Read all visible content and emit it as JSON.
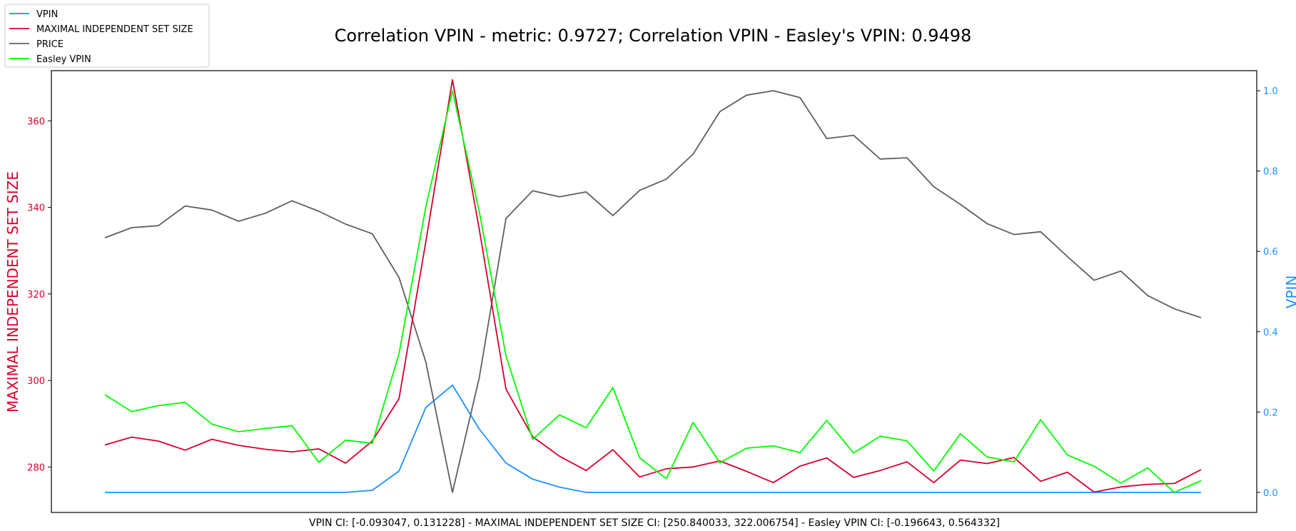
{
  "chart_data": {
    "type": "line",
    "title": "Correlation VPIN - metric: 0.9727; Correlation VPIN - Easley's VPIN: 0.9498",
    "caption": "VPIN CI: [-0.093047, 0.131228] - MAXIMAL INDEPENDENT SET SIZE CI: [250.840033, 322.006754] - Easley VPIN CI: [-0.196643, 0.564332]",
    "left_axis": {
      "label": "MAXIMAL INDEPENDENT SET SIZE",
      "color": "#d6002c",
      "range": [
        269.5,
        371.6
      ],
      "ticks": [
        280,
        300,
        320,
        340,
        360
      ],
      "tick_labels": [
        "280",
        "300",
        "320",
        "340",
        "360"
      ]
    },
    "right_axis": {
      "label": "VPIN",
      "color": "#1e90ff",
      "range": [
        -0.05,
        1.05
      ],
      "ticks": [
        0.0,
        0.2,
        0.4,
        0.6,
        0.8,
        1.0
      ],
      "tick_labels": [
        "0.0",
        "0.2",
        "0.4",
        "0.6",
        "0.8",
        "1.0"
      ]
    },
    "grid": false,
    "legend": {
      "position": "top-left",
      "entries": [
        "VPIN",
        "MAXIMAL INDEPENDENT SET SIZE",
        "PRICE",
        "Easley VPIN"
      ]
    },
    "x": [
      0,
      1,
      2,
      3,
      4,
      5,
      6,
      7,
      8,
      9,
      10,
      11,
      12,
      13,
      14,
      15,
      16,
      17,
      18,
      19,
      20,
      21,
      22,
      23,
      24,
      25,
      26,
      27,
      28,
      29,
      30,
      31,
      32,
      33,
      34,
      35,
      36,
      37,
      38,
      39,
      40,
      41
    ],
    "series": [
      {
        "name": "VPIN",
        "axis": "right",
        "color": "#1e90ff",
        "values": [
          0.0,
          0.0,
          0.0,
          0.0,
          0.0,
          0.0,
          0.0,
          0.0,
          0.0,
          0.0,
          0.005,
          0.053,
          0.211,
          0.267,
          0.158,
          0.073,
          0.033,
          0.013,
          0.0,
          0.0,
          0.0,
          0.0,
          0.0,
          0.0,
          0.0,
          0.0,
          0.0,
          0.0,
          0.0,
          0.0,
          0.0,
          0.0,
          0.0,
          0.0,
          0.0,
          0.0,
          0.0,
          0.0,
          0.0,
          0.0,
          0.0,
          0.0
        ]
      },
      {
        "name": "MAXIMAL INDEPENDENT SET SIZE",
        "axis": "left",
        "color": "#d6002c",
        "values": [
          285.1,
          286.9,
          286.0,
          283.9,
          286.4,
          285.0,
          284.1,
          283.5,
          284.2,
          280.9,
          286.0,
          295.8,
          332.0,
          369.5,
          335.0,
          298.0,
          287.0,
          282.5,
          279.2,
          284.0,
          277.7,
          279.6,
          280.0,
          281.4,
          279.0,
          276.4,
          280.2,
          282.1,
          277.6,
          279.2,
          281.2,
          276.4,
          281.6,
          280.8,
          282.2,
          276.7,
          278.8,
          274.2,
          275.4,
          276.0,
          276.2,
          279.4
        ]
      },
      {
        "name": "PRICE",
        "axis": "right",
        "color": "#5f5f5f",
        "values": [
          0.634,
          0.659,
          0.664,
          0.713,
          0.703,
          0.675,
          0.695,
          0.726,
          0.7,
          0.668,
          0.644,
          0.535,
          0.325,
          0.0,
          0.285,
          0.682,
          0.751,
          0.736,
          0.748,
          0.689,
          0.752,
          0.78,
          0.842,
          0.948,
          0.989,
          1.0,
          0.983,
          0.881,
          0.889,
          0.83,
          0.833,
          0.761,
          0.717,
          0.669,
          0.642,
          0.649,
          0.587,
          0.528,
          0.551,
          0.49,
          0.457,
          0.435
        ]
      },
      {
        "name": "Easley VPIN",
        "axis": "right",
        "color": "#00ff00",
        "values": [
          0.243,
          0.201,
          0.216,
          0.224,
          0.17,
          0.151,
          0.159,
          0.166,
          0.075,
          0.13,
          0.122,
          0.345,
          0.71,
          1.0,
          0.7,
          0.34,
          0.132,
          0.193,
          0.161,
          0.261,
          0.086,
          0.034,
          0.174,
          0.074,
          0.11,
          0.116,
          0.099,
          0.179,
          0.098,
          0.14,
          0.128,
          0.053,
          0.146,
          0.088,
          0.076,
          0.181,
          0.093,
          0.065,
          0.023,
          0.061,
          0.0,
          0.029
        ]
      }
    ]
  }
}
